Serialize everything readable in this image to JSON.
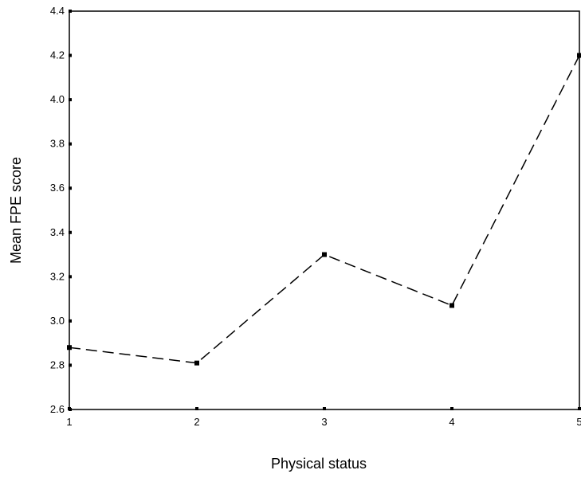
{
  "chart_data": {
    "type": "line",
    "title": "",
    "xlabel": "Physical status",
    "ylabel": "Mean FPE score",
    "x": [
      1,
      2,
      3,
      4,
      5
    ],
    "series": [
      {
        "values": [
          2.88,
          2.81,
          3.3,
          3.07,
          4.2
        ]
      }
    ],
    "xlim": [
      1,
      5
    ],
    "ylim": [
      2.6,
      4.4
    ],
    "x_ticks": [
      "1",
      "2",
      "3",
      "4",
      "5"
    ],
    "y_ticks": [
      "2.6",
      "2.8",
      "3.0",
      "3.2",
      "3.4",
      "3.6",
      "3.8",
      "4.0",
      "4.2",
      "4.4"
    ],
    "line_style": "dashed",
    "marker": "square",
    "line_color": "#000000",
    "grid": false,
    "legend": "none"
  }
}
